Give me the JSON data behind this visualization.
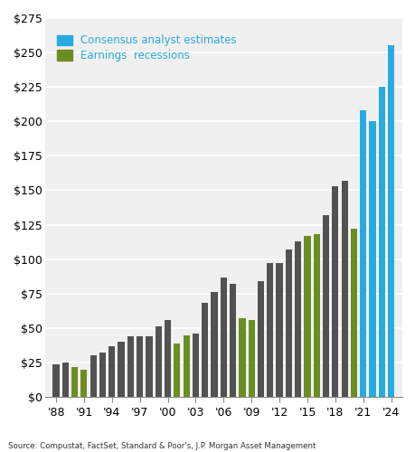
{
  "years": [
    1988,
    1989,
    1990,
    1991,
    1992,
    1993,
    1994,
    1995,
    1996,
    1997,
    1998,
    1999,
    2000,
    2001,
    2002,
    2003,
    2004,
    2005,
    2006,
    2007,
    2008,
    2009,
    2010,
    2011,
    2012,
    2013,
    2014,
    2015,
    2016,
    2017,
    2018,
    2019,
    2020,
    2021,
    2022,
    2023,
    2024
  ],
  "eps_actual": [
    24,
    25,
    22,
    20,
    30,
    32,
    37,
    40,
    44,
    44,
    44,
    51,
    56,
    39,
    45,
    46,
    68,
    76,
    87,
    82,
    57,
    56,
    84,
    97,
    97,
    107,
    113,
    117,
    118,
    132,
    153,
    157,
    122,
    208,
    200,
    225,
    255
  ],
  "bar_type": [
    "gray",
    "gray",
    "green",
    "green",
    "gray",
    "gray",
    "gray",
    "gray",
    "gray",
    "gray",
    "gray",
    "gray",
    "gray",
    "green",
    "green",
    "gray",
    "gray",
    "gray",
    "gray",
    "gray",
    "green",
    "green",
    "gray",
    "gray",
    "gray",
    "gray",
    "gray",
    "green",
    "green",
    "gray",
    "gray",
    "gray",
    "green",
    "blue",
    "blue",
    "blue",
    "blue"
  ],
  "recession_color": "#6B8E23",
  "blue_color": "#29ABE2",
  "dark_color": "#525252",
  "tick_labels": [
    "'88",
    "'91",
    "'94",
    "'97",
    "'00",
    "'03",
    "'06",
    "'09",
    "'12",
    "'15",
    "'18",
    "'21",
    "'24"
  ],
  "tick_positions": [
    1988,
    1991,
    1994,
    1997,
    2000,
    2003,
    2006,
    2009,
    2012,
    2015,
    2018,
    2021,
    2024
  ],
  "ylim": [
    0,
    275
  ],
  "yticks": [
    0,
    25,
    50,
    75,
    100,
    125,
    150,
    175,
    200,
    225,
    250,
    275
  ],
  "legend_blue_label": "Consensus analyst estimates",
  "legend_green_label": "Earnings  recessions",
  "source_text": "Source: Compustat, FactSet, Standard & Poor's, J.P. Morgan Asset Management",
  "background_color": "#FFFFFF",
  "plot_bg_color": "#F0F0F0"
}
